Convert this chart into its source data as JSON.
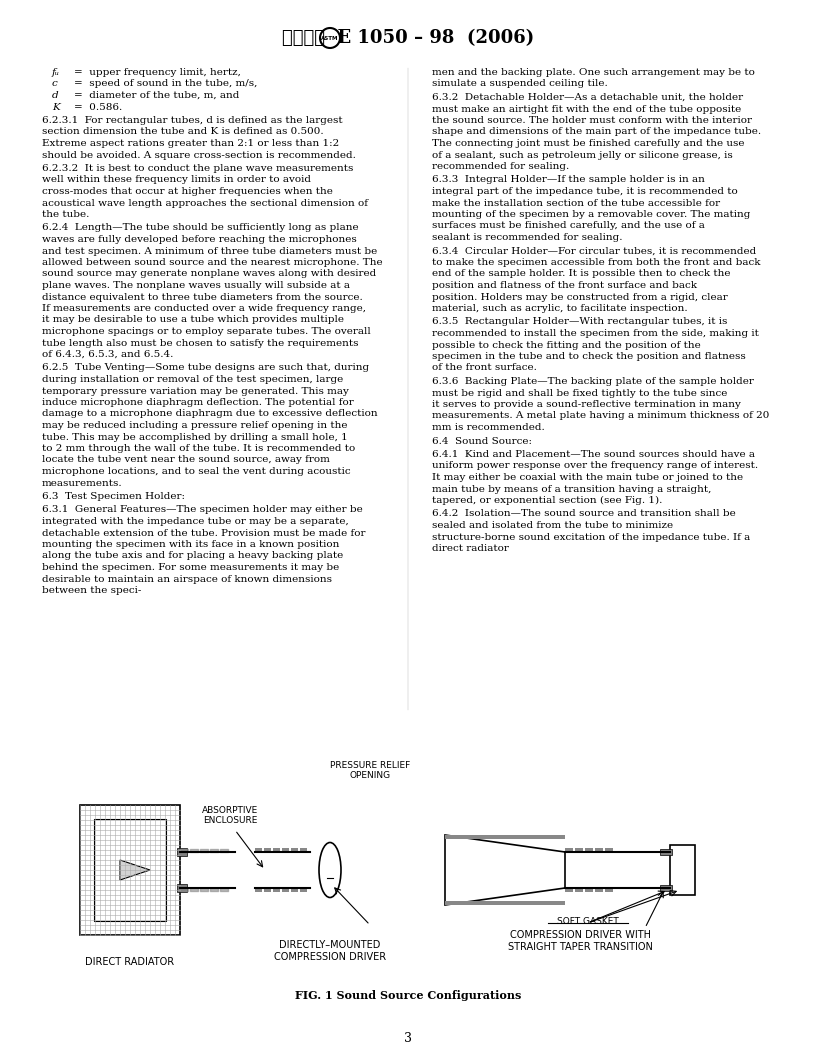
{
  "title": "ⒶⓈⓉⒼ  E 1050 – 98  (2006)",
  "page_number": "3",
  "bg_color": "#ffffff",
  "text_color": "#000000",
  "red_color": "#cc0000",
  "left_column": [
    {
      "type": "vars",
      "lines": [
        {
          "var": "fᵤ",
          "text": "=  upper frequency limit, hertz,"
        },
        {
          "var": "c",
          "text": "=  speed of sound in the tube, m/s,"
        },
        {
          "var": "d",
          "text": "=  diameter of the tube, m, and"
        },
        {
          "var": "K",
          "text": "=  0.586."
        }
      ]
    },
    {
      "type": "para",
      "indent": true,
      "text": "6.2.3.1  For rectangular tubes, d is defined as the largest section dimension the tube and K is defined as 0.500. Extreme aspect rations greater than 2:1 or less than 1:2 should be avoided. A square cross-section is recommended."
    },
    {
      "type": "para",
      "indent": true,
      "text": "6.2.3.2  It is best to conduct the plane wave measurements well within these frequency limits in order to avoid cross-modes that occur at higher frequencies when the acoustical wave length approaches the sectional dimension of the tube."
    },
    {
      "type": "para",
      "indent": true,
      "text": "6.2.4  Length—The tube should be sufficiently long as plane waves are fully developed before reaching the microphones and test specimen. A minimum of three tube diameters must be allowed between sound source and the nearest microphone. The sound source may generate nonplane waves along with desired plane waves. The nonplane waves usually will subside at a distance equivalent to three tube diameters from the source. If measurements are conducted over a wide frequency range, it may be desirable to use a tube which provides multiple microphone spacings or to employ separate tubes. The overall tube length also must be chosen to satisfy the requirements of 6.4.3, 6.5.3, and 6.5.4."
    },
    {
      "type": "para",
      "indent": true,
      "text": "6.2.5  Tube Venting—Some tube designs are such that, during during installation or removal of the test specimen, large temporary pressure variation may be generated. This may induce microphone diaphragm deflection. The potential for damage to a microphone diaphragm due to excessive deflection may be reduced including a pressure relief opening in the tube. This may be accomplished by drilling a small hole, 1 to 2 mm through the wall of the tube. It is recommended to locate the tube vent near the sound source, away from microphone locations, and to seal the vent during acoustic measurements."
    },
    {
      "type": "para",
      "indent": false,
      "text": "6.3  Test Specimen Holder:"
    },
    {
      "type": "para",
      "indent": true,
      "text": "6.3.1  General Features—The specimen holder may either be integrated with the impedance tube or may be a separate, detachable extension of the tube. Provision must be made for mounting the specimen with its face in a known position along the tube axis and for placing a heavy backing plate behind the specimen. For some measurements it may be desirable to maintain an airspace of known dimensions between the speci-"
    }
  ],
  "right_column": [
    {
      "type": "para",
      "text": "men and the backing plate. One such arrangement may be to simulate a suspended ceiling tile."
    },
    {
      "type": "para",
      "indent": true,
      "text": "6.3.2  Detachable Holder—As a detachable unit, the holder must make an airtight fit with the end of the tube opposite the sound source. The holder must conform with the interior shape and dimensions of the main part of the impedance tube. The connecting joint must be finished carefully and the use of a sealant, such as petroleum jelly or silicone grease, is recommended for sealing."
    },
    {
      "type": "para",
      "indent": true,
      "text": "6.3.3  Integral Holder—If the sample holder is in an integral part of the impedance tube, it is recommended to make the installation section of the tube accessible for mounting of the specimen by a removable cover. The mating surfaces must be finished carefully, and the use of a sealant is recommended for sealing."
    },
    {
      "type": "para",
      "indent": true,
      "text": "6.3.4  Circular Holder—For circular tubes, it is recommended to make the specimen accessible from both the front and back end of the sample holder. It is possible then to check the position and flatness of the front surface and back position. Holders may be constructed from a rigid, clear material, such as acrylic, to facilitate inspection."
    },
    {
      "type": "para",
      "indent": true,
      "text": "6.3.5  Rectangular Holder—With rectangular tubes, it is recommended to install the specimen from the side, making it possible to check the fitting and the position of the specimen in the tube and to check the position and flatness of the front surface."
    },
    {
      "type": "para",
      "indent": true,
      "text": "6.3.6  Backing Plate—The backing plate of the sample holder must be rigid and shall be fixed tightly to the tube since it serves to provide a sound-reflective termination in many measurements. A metal plate having a minimum thickness of 20 mm is recommended."
    },
    {
      "type": "para",
      "indent": false,
      "text": "6.4  Sound Source:"
    },
    {
      "type": "para",
      "indent": true,
      "text": "6.4.1  Kind and Placement—The sound sources should have a uniform power response over the frequency range of interest. It may either be coaxial with the main tube or joined to the main tube by means of a transition having a straight, tapered, or exponential section (see Fig. 1)."
    },
    {
      "type": "para",
      "indent": true,
      "text": "6.4.2  Isolation—The sound source and transition shall be sealed and isolated from the tube to minimize structure-borne sound excitation of the impedance tube. If a direct radiator"
    }
  ],
  "fig_caption": "FIG. 1 Sound Source Configurations",
  "fig_label1": "DIRECT RADIATOR",
  "fig_label2": "DIRECTLY–MOUNTED\nCOMPRESSION DRIVER",
  "fig_label3": "COMPRESSION DRIVER WITH\nSTRAIGHT TAPER TRANSITION",
  "fig_annot1": "ABSORPTIVE\nENCLOSURE",
  "fig_annot2": "PRESSURE RELIEF\nOPENING",
  "fig_annot3": "SOFT GASKET"
}
